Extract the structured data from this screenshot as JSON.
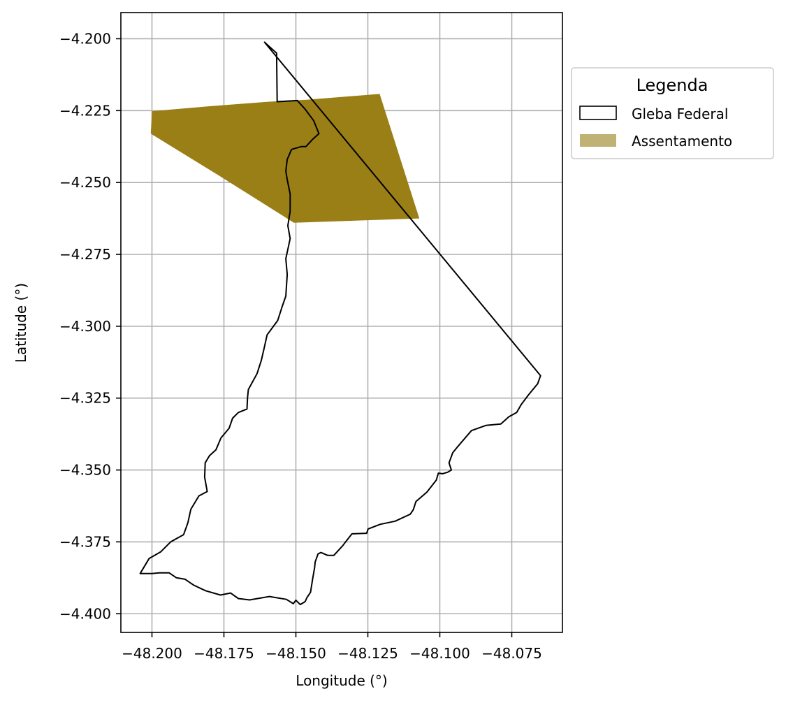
{
  "chart_data": {
    "type": "map",
    "title": "",
    "xlabel": "Longitude (°)",
    "ylabel": "Latitude (°)",
    "xlim": [
      -48.2108,
      -48.0574
    ],
    "ylim": [
      -4.4065,
      -4.1909
    ],
    "grid": true,
    "x_ticks": [
      -48.2,
      -48.175,
      -48.15,
      -48.125,
      -48.1,
      -48.075
    ],
    "x_tick_labels": [
      "−48.200",
      "−48.175",
      "−48.150",
      "−48.125",
      "−48.100",
      "−48.075"
    ],
    "y_ticks": [
      -4.2,
      -4.225,
      -4.25,
      -4.275,
      -4.3,
      -4.325,
      -4.35,
      -4.375,
      -4.4
    ],
    "y_tick_labels": [
      "−4.200",
      "−4.225",
      "−4.250",
      "−4.275",
      "−4.300",
      "−4.325",
      "−4.350",
      "−4.375",
      "−4.400"
    ],
    "legend": {
      "title": "Legenda",
      "placement": "outside-upper-right",
      "entries": [
        {
          "label": "Gleba Federal",
          "kind": "outline",
          "color": "#000000"
        },
        {
          "label": "Assentamento",
          "kind": "fill",
          "color": "#9a7f17",
          "legend_color": "#bfb274"
        }
      ]
    },
    "series": [
      {
        "name": "Assentamento",
        "kind": "polygon-fill",
        "color": "#9a7f17",
        "points": [
          [
            -48.2004,
            -4.233
          ],
          [
            -48.2,
            -4.2252
          ],
          [
            -48.1803,
            -4.2235
          ],
          [
            -48.1592,
            -4.2219
          ],
          [
            -48.1463,
            -4.2212
          ],
          [
            -48.1209,
            -4.2192
          ],
          [
            -48.1071,
            -4.2625
          ],
          [
            -48.1507,
            -4.264
          ],
          [
            -48.1761,
            -4.248
          ],
          [
            -48.2004,
            -4.233
          ]
        ]
      },
      {
        "name": "Gleba Federal",
        "kind": "polygon-outline",
        "color": "#000000",
        "points": [
          [
            -48.1609,
            -4.2012
          ],
          [
            -48.065,
            -4.3172
          ],
          [
            -48.066,
            -4.32
          ],
          [
            -48.0693,
            -4.324
          ],
          [
            -48.0717,
            -4.3272
          ],
          [
            -48.0733,
            -4.33
          ],
          [
            -48.076,
            -4.3315
          ],
          [
            -48.0788,
            -4.334
          ],
          [
            -48.084,
            -4.3345
          ],
          [
            -48.089,
            -4.3363
          ],
          [
            -48.0937,
            -4.3418
          ],
          [
            -48.0955,
            -4.344
          ],
          [
            -48.0968,
            -4.3475
          ],
          [
            -48.096,
            -4.35
          ],
          [
            -48.0973,
            -4.3508
          ],
          [
            -48.099,
            -4.3513
          ],
          [
            -48.1005,
            -4.3511
          ],
          [
            -48.1012,
            -4.3535
          ],
          [
            -48.1045,
            -4.3577
          ],
          [
            -48.1083,
            -4.361
          ],
          [
            -48.1092,
            -4.3638
          ],
          [
            -48.1103,
            -4.3654
          ],
          [
            -48.1155,
            -4.3678
          ],
          [
            -48.1207,
            -4.3689
          ],
          [
            -48.1249,
            -4.3705
          ],
          [
            -48.1254,
            -4.372
          ],
          [
            -48.1305,
            -4.3722
          ],
          [
            -48.1325,
            -4.3747
          ],
          [
            -48.1337,
            -4.3763
          ],
          [
            -48.1368,
            -4.3797
          ],
          [
            -48.139,
            -4.3797
          ],
          [
            -48.1413,
            -4.3787
          ],
          [
            -48.1423,
            -4.3792
          ],
          [
            -48.1433,
            -4.382
          ],
          [
            -48.1435,
            -4.384
          ],
          [
            -48.1442,
            -4.388
          ],
          [
            -48.1449,
            -4.3925
          ],
          [
            -48.1462,
            -4.3945
          ],
          [
            -48.1468,
            -4.3958
          ],
          [
            -48.1485,
            -4.3968
          ],
          [
            -48.15,
            -4.3953
          ],
          [
            -48.1509,
            -4.3965
          ],
          [
            -48.1533,
            -4.395
          ],
          [
            -48.1592,
            -4.394
          ],
          [
            -48.1661,
            -4.3952
          ],
          [
            -48.17,
            -4.3947
          ],
          [
            -48.1727,
            -4.3928
          ],
          [
            -48.1762,
            -4.3935
          ],
          [
            -48.1814,
            -4.392
          ],
          [
            -48.1856,
            -4.39
          ],
          [
            -48.1885,
            -4.388
          ],
          [
            -48.1915,
            -4.3875
          ],
          [
            -48.194,
            -4.3858
          ],
          [
            -48.1975,
            -4.3858
          ],
          [
            -48.2,
            -4.386
          ],
          [
            -48.2041,
            -4.386
          ],
          [
            -48.201,
            -4.3808
          ],
          [
            -48.197,
            -4.3785
          ],
          [
            -48.1935,
            -4.375
          ],
          [
            -48.189,
            -4.3725
          ],
          [
            -48.1875,
            -4.3683
          ],
          [
            -48.1865,
            -4.3637
          ],
          [
            -48.1837,
            -4.359
          ],
          [
            -48.1808,
            -4.3575
          ],
          [
            -48.1817,
            -4.3525
          ],
          [
            -48.1815,
            -4.3475
          ],
          [
            -48.18,
            -4.345
          ],
          [
            -48.1778,
            -4.343
          ],
          [
            -48.176,
            -4.3388
          ],
          [
            -48.1732,
            -4.3355
          ],
          [
            -48.172,
            -4.332
          ],
          [
            -48.17,
            -4.33
          ],
          [
            -48.167,
            -4.3288
          ],
          [
            -48.1668,
            -4.3248
          ],
          [
            -48.1665,
            -4.322
          ],
          [
            -48.1635,
            -4.3165
          ],
          [
            -48.162,
            -4.3118
          ],
          [
            -48.161,
            -4.3075
          ],
          [
            -48.16,
            -4.303
          ],
          [
            -48.1563,
            -4.298
          ],
          [
            -48.1547,
            -4.293
          ],
          [
            -48.1535,
            -4.2895
          ],
          [
            -48.153,
            -4.282
          ],
          [
            -48.1535,
            -4.2765
          ],
          [
            -48.152,
            -4.2695
          ],
          [
            -48.1528,
            -4.265
          ],
          [
            -48.152,
            -4.26
          ],
          [
            -48.152,
            -4.254
          ],
          [
            -48.153,
            -4.249
          ],
          [
            -48.1535,
            -4.246
          ],
          [
            -48.153,
            -4.242
          ],
          [
            -48.1515,
            -4.2385
          ],
          [
            -48.148,
            -4.2375
          ],
          [
            -48.1465,
            -4.2375
          ],
          [
            -48.1442,
            -4.235
          ],
          [
            -48.142,
            -4.233
          ],
          [
            -48.1438,
            -4.2285
          ],
          [
            -48.1468,
            -4.2245
          ],
          [
            -48.1495,
            -4.2215
          ],
          [
            -48.1565,
            -4.2219
          ],
          [
            -48.1567,
            -4.205
          ],
          [
            -48.1609,
            -4.2012
          ]
        ]
      }
    ]
  }
}
